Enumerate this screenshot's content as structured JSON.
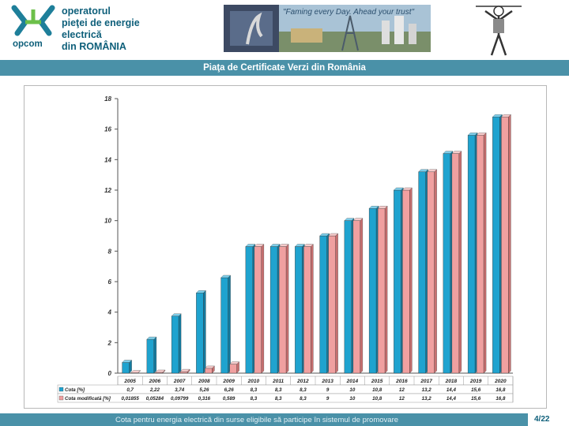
{
  "header": {
    "logo_word": "opcom",
    "org_lines": [
      "operatorul",
      "pieţei de energie",
      "electrică",
      "din ROMÂNIA"
    ],
    "slogan": "\"Faming every Day. Ahead your trust\"",
    "banner_title": "Piaţa de Certificate Verzi din România"
  },
  "footer": {
    "caption": "Cota pentru energia electrică din surse eligibile să participe în sistemul de promovare",
    "page": "4/22"
  },
  "colors": {
    "brand": "#0e5f7a",
    "banner": "#4a91a8",
    "series_cota": "#1fa3cf",
    "series_modificata": "#f0a0a0"
  },
  "chart_data": {
    "type": "bar",
    "title": "",
    "xlabel": "",
    "ylabel": "",
    "ylim": [
      0,
      18
    ],
    "yticks": [
      "0",
      "2",
      "4",
      "6",
      "8",
      "10",
      "12",
      "14",
      "16",
      "18"
    ],
    "grid": false,
    "legend": "table-below",
    "categories": [
      "2005",
      "2006",
      "2007",
      "2008",
      "2009",
      "2010",
      "2011",
      "2012",
      "2013",
      "2014",
      "2015",
      "2016",
      "2017",
      "2018",
      "2019",
      "2020"
    ],
    "series": [
      {
        "name": "Cota [%]",
        "color": "#1fa3cf",
        "values": [
          0.7,
          2.22,
          3.74,
          5.26,
          6.26,
          8.3,
          8.3,
          8.3,
          9,
          10,
          10.8,
          12,
          13.2,
          14.4,
          15.6,
          16.8
        ],
        "labels": [
          "0,7",
          "2,22",
          "3,74",
          "5,26",
          "6,26",
          "8,3",
          "8,3",
          "8,3",
          "9",
          "10",
          "10,8",
          "12",
          "13,2",
          "14,4",
          "15,6",
          "16,8"
        ]
      },
      {
        "name": "Cota modificată [%]",
        "color": "#f0a0a0",
        "values": [
          0.01855,
          0.05284,
          0.09799,
          0.316,
          0.589,
          8.3,
          8.3,
          8.3,
          9,
          10,
          10.8,
          12,
          13.2,
          14.4,
          15.6,
          16.8
        ],
        "labels": [
          "0,01855",
          "0,05284",
          "0,09799",
          "0,316",
          "0,589",
          "8,3",
          "8,3",
          "8,3",
          "9",
          "10",
          "10,8",
          "12",
          "13,2",
          "14,4",
          "15,6",
          "16,8"
        ]
      }
    ]
  }
}
